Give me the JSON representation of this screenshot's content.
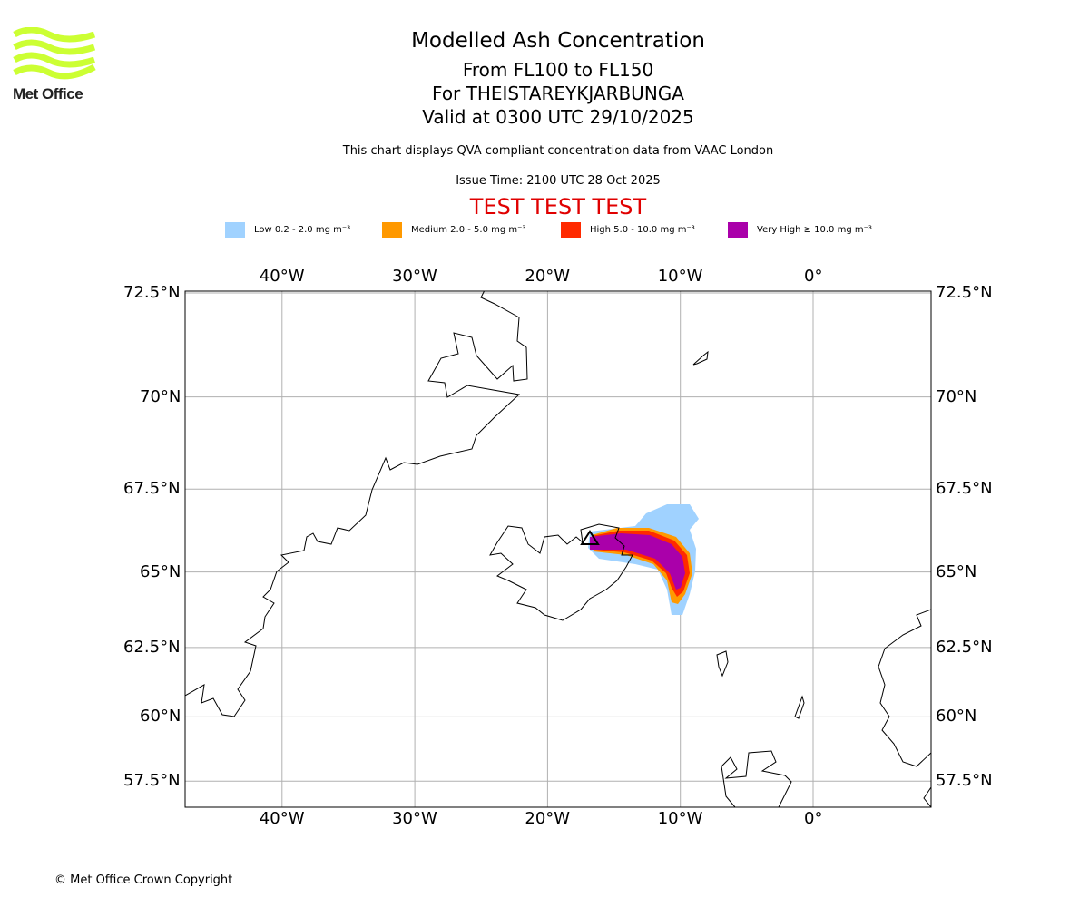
{
  "logo": {
    "text": "Met Office"
  },
  "header": {
    "title": "Modelled Ash Concentration",
    "levels": "From FL100 to FL150",
    "volcano": "For THEISTAREYKJARBUNGA",
    "valid": "Valid at 0300 UTC 29/10/2025",
    "description": "This chart displays QVA compliant concentration data from VAAC London",
    "issue": "Issue Time: 2100 UTC 28 Oct 2025",
    "test_banner": "TEST TEST TEST"
  },
  "legend": [
    {
      "label": "Low 0.2 - 2.0 mg m⁻³",
      "color": "#a0d2ff"
    },
    {
      "label": "Medium 2.0 - 5.0 mg m⁻³",
      "color": "#ff9900"
    },
    {
      "label": "High 5.0 - 10.0 mg m⁻³",
      "color": "#ff2a00"
    },
    {
      "label": "Very High ≥ 10.0 mg m⁻³",
      "color": "#aa00aa"
    }
  ],
  "map": {
    "lon_ticks": [
      {
        "value": -40,
        "label": "40°W"
      },
      {
        "value": -30,
        "label": "30°W"
      },
      {
        "value": -20,
        "label": "20°W"
      },
      {
        "value": -10,
        "label": "10°W"
      },
      {
        "value": 0,
        "label": "0°"
      }
    ],
    "lat_ticks": [
      {
        "value": 72.5,
        "label": "72.5°N"
      },
      {
        "value": 70,
        "label": "70°N"
      },
      {
        "value": 67.5,
        "label": "67.5°N"
      },
      {
        "value": 65,
        "label": "65°N"
      },
      {
        "value": 62.5,
        "label": "62.5°N"
      },
      {
        "value": 60,
        "label": "60°N"
      },
      {
        "value": 57.5,
        "label": "57.5°N"
      }
    ],
    "extent": {
      "lon": [
        -47.3,
        8.8
      ],
      "lat": [
        56.7,
        72.6
      ]
    }
  },
  "footer": {
    "copyright": "© Met Office Crown Copyright"
  }
}
